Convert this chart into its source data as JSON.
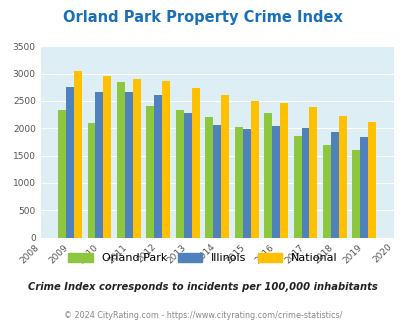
{
  "title": "Orland Park Property Crime Index",
  "title_color": "#1a6fba",
  "years": [
    2009,
    2010,
    2011,
    2012,
    2013,
    2014,
    2015,
    2016,
    2017,
    2018,
    2019
  ],
  "orland_park": [
    2330,
    2100,
    2840,
    2400,
    2340,
    2200,
    2030,
    2270,
    1860,
    1700,
    1610
  ],
  "illinois": [
    2750,
    2670,
    2670,
    2600,
    2280,
    2060,
    1990,
    2040,
    2010,
    1940,
    1840
  ],
  "national": [
    3040,
    2950,
    2900,
    2860,
    2730,
    2600,
    2500,
    2470,
    2380,
    2220,
    2110
  ],
  "orland_color": "#8dc63f",
  "illinois_color": "#4f81bd",
  "national_color": "#ffc000",
  "plot_bg": "#ddeef5",
  "ylim": [
    0,
    3500
  ],
  "yticks": [
    0,
    500,
    1000,
    1500,
    2000,
    2500,
    3000,
    3500
  ],
  "xticks": [
    2008,
    2009,
    2010,
    2011,
    2012,
    2013,
    2014,
    2015,
    2016,
    2017,
    2018,
    2019,
    2020
  ],
  "subtitle": "Crime Index corresponds to incidents per 100,000 inhabitants",
  "subtitle_color": "#222222",
  "footer": "© 2024 CityRating.com - https://www.cityrating.com/crime-statistics/",
  "footer_color": "#888888",
  "legend_labels": [
    "Orland Park",
    "Illinois",
    "National"
  ],
  "bar_width": 0.27
}
